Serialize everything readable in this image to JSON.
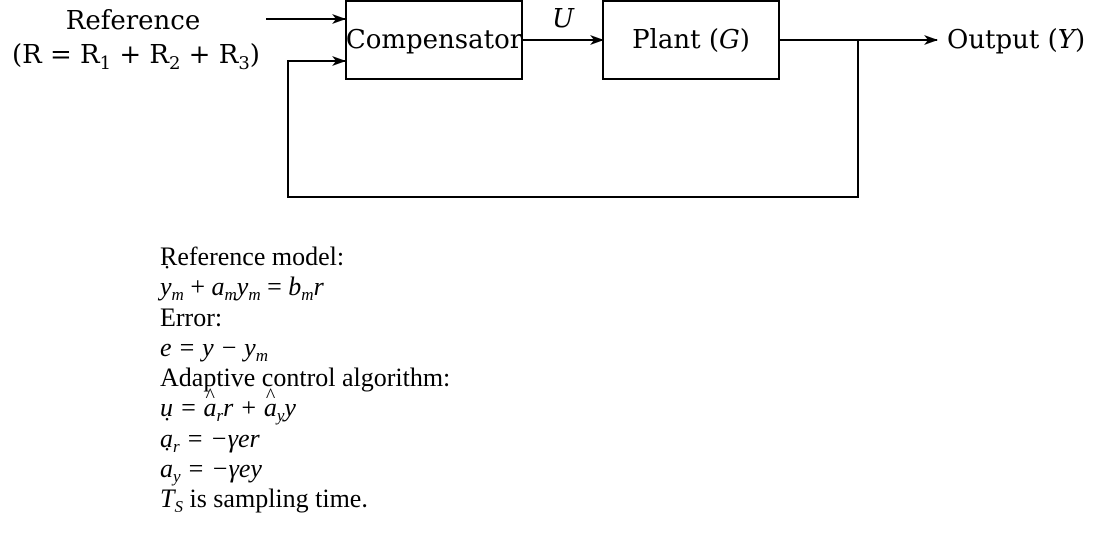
{
  "diagram": {
    "reference_label": "Reference",
    "reference_expr": "(R = R",
    "reference_expr_parts": [
      "1",
      " + R",
      "2",
      " + R",
      "3",
      ")"
    ],
    "compensator_label": "Compensator",
    "control_signal_label": "U",
    "plant_label_text": "Plant (",
    "plant_label_symbol": "G",
    "plant_label_close": ")",
    "output_label_text": "Output (",
    "output_label_symbol": "Y",
    "output_label_close": ")"
  },
  "equations": {
    "reference_model_heading": "Reference model:",
    "reference_model": {
      "y": "y",
      "m": "m",
      "plus": " + ",
      "a": "a",
      "am": "m",
      "y2": "y",
      "m2": "m",
      "eq": " = ",
      "b": "b",
      "bm": "m",
      "r": "r"
    },
    "error_heading": "Error:",
    "error": "e = y − y",
    "error_sub": "m",
    "algorithm_heading": "Adaptive control algorithm:",
    "control_law": {
      "lhs": "u = ",
      "ar": "a",
      "ar_sub": "r",
      "r": "r + ",
      "ay": "a",
      "ay_sub": "y",
      "y": "y"
    },
    "update_r": {
      "a": "a",
      "sub": "r",
      "rhs": " = −γer"
    },
    "update_y": {
      "a": "a",
      "sub": "y",
      "rhs": " = −γey"
    },
    "sampling": {
      "T": "T",
      "sub": "S",
      "text": " is sampling time."
    }
  },
  "colors": {
    "stroke": "#000000",
    "background": "#ffffff"
  }
}
